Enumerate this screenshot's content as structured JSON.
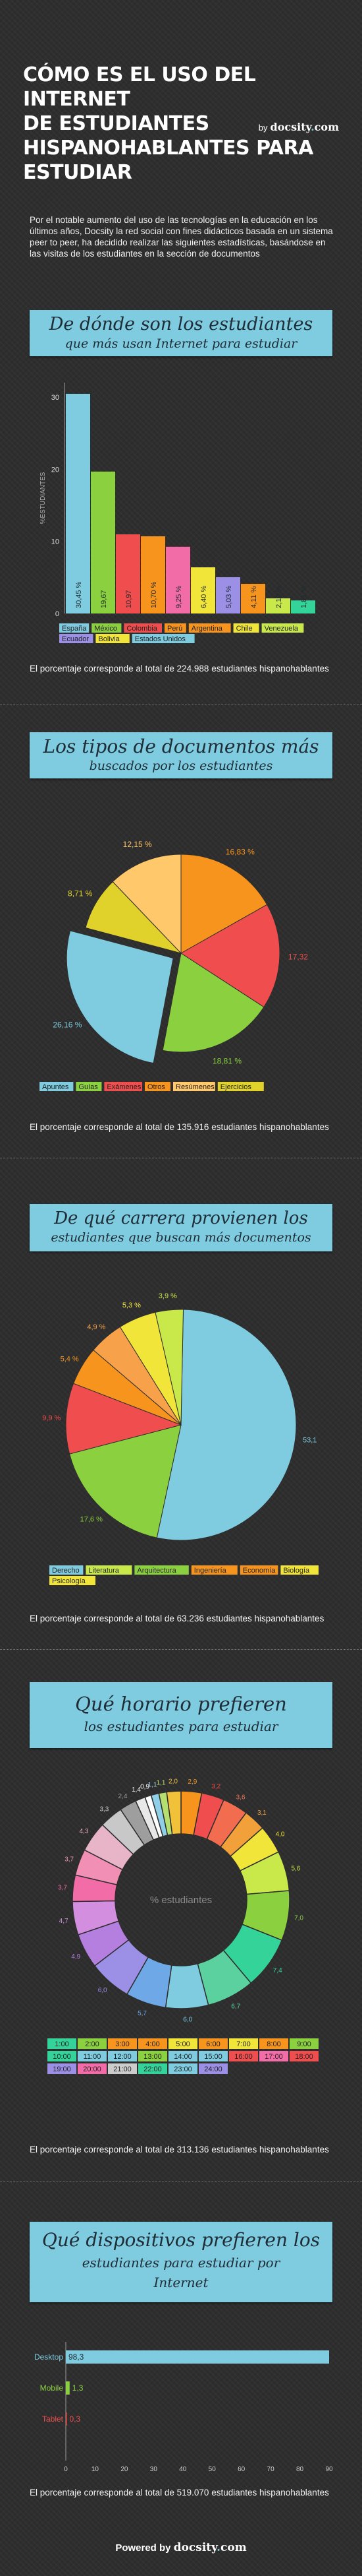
{
  "header": {
    "title_lines": [
      "CÓMO ES EL USO DEL INTERNET",
      "DE ESTUDIANTES",
      "HISPANOHABLANTES PARA",
      "ESTUDIAR"
    ],
    "by": "by",
    "logo_main": "docsity",
    "logo_dot": ".",
    "logo_tld": "com"
  },
  "intro_text": "Por el notable aumento del uso de las tecnologías en la educación en los últimos años, Docsity la red social con fines didácticos basada en un sistema peer to peer, ha decidido realizar las siguientes estadísticas, basándose en las visitas de los estudiantes en la sección de documentos",
  "colors": {
    "blue": "#7fcbe0",
    "green": "#8bd13f",
    "red": "#f04e4e",
    "orange": "#f7941d",
    "pink": "#f26ca7",
    "yellow": "#f2e53a",
    "purple": "#9b8fe6",
    "teal": "#34d39a"
  },
  "section1": {
    "banner_l1": "De dónde son los estudiantes",
    "banner_l2": "que más usan Internet para estudiar",
    "note": "El porcentaje corresponde al total de 224.988 estudiantes hispanohablantes"
  },
  "section2": {
    "banner_l1": "Los tipos de documentos más",
    "banner_l2": "buscados por los estudiantes",
    "note": "El porcentaje corresponde al total de 135.916 estudiantes hispanohablantes"
  },
  "section3": {
    "banner_l1": "De qué carrera provienen los",
    "banner_l2": "estudiantes que buscan más documentos",
    "note": "El porcentaje corresponde al total de 63.236 estudiantes hispanohablantes"
  },
  "section4": {
    "banner_l1": "Qué horario prefieren",
    "banner_l2": "los estudiantes para estudiar",
    "note": "El porcentaje corresponde al total de 313.136 estudiantes hispanohablantes"
  },
  "section5": {
    "banner_l1": "Qué dispositivos prefieren los",
    "banner_l2": "estudiantes para estudiar por",
    "banner_l3": "Internet",
    "note": "El porcentaje corresponde al total de 519.070 estudiantes hispanohablantes"
  },
  "footer": {
    "powered": "Powered by",
    "logo_main": "docsity",
    "logo_dot": ".",
    "logo_tld": "com"
  },
  "chart_data": [
    {
      "type": "bar",
      "ylabel": "%ESTUDIANTES",
      "ylim": [
        0,
        32
      ],
      "yticks": [
        0,
        10,
        20,
        30
      ],
      "categories": [
        "España",
        "México",
        "Colombia",
        "Perú",
        "Argentina",
        "Chile",
        "Venezuela",
        "Ecuador",
        "Bolivia",
        "Estados Unidos"
      ],
      "values": [
        30.45,
        19.67,
        10.97,
        10.7,
        9.25,
        6.4,
        5.03,
        4.11,
        2.1,
        1.81
      ],
      "data_labels": [
        "30,45 %",
        "19,67",
        "10,97",
        "10,70 %",
        "9,25 %",
        "6,40 %",
        "5,03 %",
        "4,11 %",
        "2,10 %",
        "1,81 %"
      ],
      "colors": [
        "#7fcbe0",
        "#8bd13f",
        "#f04e4e",
        "#f7941d",
        "#f26ca7",
        "#f2e53a",
        "#9b8fe6",
        "#f7941d",
        "#c9e84a",
        "#34d39a"
      ],
      "legend_colors": [
        "#7fcbe0",
        "#8bd13f",
        "#f04e4e",
        "#f7941d",
        "#f7941d",
        "#f2e53a",
        "#c9e84a",
        "#9b8fe6",
        "#f2e53a",
        "#7fcbe0"
      ]
    },
    {
      "type": "pie",
      "categories": [
        "Apuntes",
        "Guías",
        "Exámenes",
        "Otros",
        "Resúmenes",
        "Ejercicios"
      ],
      "values": [
        26.16,
        18.81,
        17.32,
        16.83,
        12.15,
        8.71
      ],
      "data_labels": [
        "26,16 %",
        "18,81 %",
        "17,32",
        "16,83 %",
        "12,15 %",
        "8,71 %"
      ],
      "colors": [
        "#7fcbe0",
        "#8bd13f",
        "#f04e4e",
        "#f7941d",
        "#ffc86b",
        "#e0d22a"
      ],
      "legend_colors": [
        "#7fcbe0",
        "#8bd13f",
        "#f04e4e",
        "#f7941d",
        "#ffc86b",
        "#e0d22a"
      ]
    },
    {
      "type": "pie",
      "categories": [
        "Derecho",
        "Literatura",
        "Arquitectura",
        "Ingeniería",
        "Economía",
        "Biología",
        "Psicología"
      ],
      "values": [
        53.1,
        17.6,
        9.9,
        5.4,
        4.9,
        5.3,
        3.9
      ],
      "data_labels": [
        "53,1",
        "17,6 %",
        "9,9 %",
        "5,4 %",
        "4,9 %",
        "5,3 %",
        "3,9 %"
      ],
      "colors": [
        "#7fcbe0",
        "#8bd13f",
        "#f04e4e",
        "#f7941d",
        "#f7a14a",
        "#f2e53a",
        "#c9e84a"
      ],
      "legend_colors": [
        "#7fcbe0",
        "#c9e84a",
        "#8bd13f",
        "#f7941d",
        "#f7941d",
        "#f2e53a",
        "#f2e53a"
      ]
    },
    {
      "type": "pie",
      "variant": "donut",
      "center_label": "% estudiantes",
      "categories": [
        "1:00",
        "2:00",
        "3:00",
        "4:00",
        "5:00",
        "6:00",
        "7:00",
        "8:00",
        "9:00",
        "10:00",
        "11:00",
        "12:00",
        "13:00",
        "14:00",
        "15:00",
        "16:00",
        "17:00",
        "18:00",
        "19:00",
        "20:00",
        "21:00",
        "22:00",
        "23:00",
        "24:00"
      ],
      "values": [
        2.9,
        3.2,
        3.6,
        3.1,
        4.0,
        5.6,
        7.0,
        7.4,
        6.7,
        6.0,
        5.7,
        6.0,
        4.9,
        4.7,
        3.7,
        3.7,
        4.3,
        3.3,
        2.4,
        1.4,
        0.9,
        1.1,
        1.1,
        2.0
      ],
      "data_labels": [
        "2,9",
        "3,2",
        "3,6",
        "3,1",
        "4,0",
        "5,6",
        "7,0",
        "7,4",
        "6,7",
        "6,0",
        "5,7",
        "6,0",
        "4,9",
        "4,7",
        "3,7",
        "3,7",
        "4,3",
        "3,3",
        "2,4",
        "1,4",
        "0,9",
        "1,1",
        "1,1",
        "2,0"
      ],
      "colors": [
        "#f7941d",
        "#f04e4e",
        "#f26c4f",
        "#f2a13a",
        "#f2e53a",
        "#c9e84a",
        "#8bd13f",
        "#34d39a",
        "#5bd1a0",
        "#7fcbe0",
        "#6fa8e6",
        "#9b8fe6",
        "#b57fe0",
        "#d48ee0",
        "#f26ca7",
        "#f28fb4",
        "#e8b4c8",
        "#c8c8c8",
        "#9e9e9e",
        "#e8e8e8",
        "#ffffff",
        "#8fd0e8",
        "#b5e06f",
        "#f2c13a"
      ],
      "legend_colors": [
        "#34d39a",
        "#8bd13f",
        "#f7941d",
        "#f7941d",
        "#f2e53a",
        "#f7941d",
        "#f2e53a",
        "#f7941d",
        "#8bd13f",
        "#34d39a",
        "#7fcbe0",
        "#7fcbe0",
        "#8bd13f",
        "#7fcbe0",
        "#7fcbe0",
        "#f04e4e",
        "#f26ca7",
        "#f04e4e",
        "#9b8fe6",
        "#f26ca7",
        "#cccccc",
        "#34d39a",
        "#7fcbe0",
        "#9b8fe6"
      ]
    },
    {
      "type": "bar",
      "orientation": "horizontal",
      "categories": [
        "Desktop",
        "Mobile",
        "Tablet"
      ],
      "values": [
        98.3,
        1.3,
        0.3
      ],
      "data_labels": [
        "98,3",
        "1,3",
        "0,3"
      ],
      "xlim": [
        0,
        90
      ],
      "xticks": [
        0,
        10,
        20,
        30,
        40,
        50,
        60,
        70,
        80,
        90
      ],
      "colors": [
        "#7fcbe0",
        "#8bd13f",
        "#f04e4e"
      ],
      "label_colors": [
        "#7fcbe0",
        "#8bd13f",
        "#f04e4e"
      ]
    }
  ]
}
